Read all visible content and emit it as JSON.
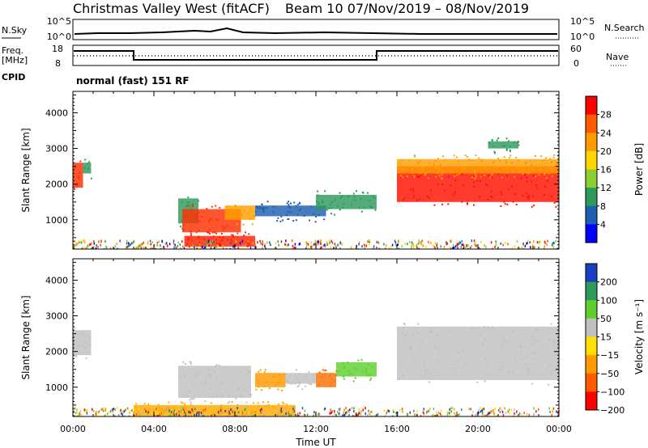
{
  "header": {
    "title": "Christmas Valley West (fitACF)",
    "subtitle": "Beam 10  07/Nov/2019 – 08/Nov/2019"
  },
  "panels": {
    "noise": {
      "left_label": "N.Sky",
      "right_label": "N.Search",
      "left_ticks": [
        "10^5",
        "10^0"
      ],
      "right_ticks": [
        "10^5",
        "10^0"
      ]
    },
    "freq": {
      "left_label_1": "Freq.",
      "left_label_2": "[MHz]",
      "right_label": "Nave",
      "left_ticks": [
        "18",
        "8"
      ],
      "right_ticks": [
        "60",
        "0"
      ]
    },
    "cpid": {
      "label": "CPID",
      "text": "normal (fast) 151 RF"
    }
  },
  "chart_data": [
    {
      "type": "heatmap",
      "name_printed": "",
      "ylabel": "Slant Range [km]",
      "xlabel": "",
      "x_ticks": [
        "00:00",
        "04:00",
        "08:00",
        "12:00",
        "16:00",
        "20:00",
        "00:00"
      ],
      "y_ticks": [
        1000,
        2000,
        3000,
        4000
      ],
      "ylim": [
        180,
        4600
      ],
      "xlim_hours": [
        0,
        24
      ],
      "colorbar": {
        "label": "Power [dB]",
        "ticks": [
          "28",
          "24",
          "20",
          "16",
          "12",
          "8",
          "4"
        ],
        "colors": [
          "#ff0000",
          "#ff5a00",
          "#ff9a00",
          "#ffd700",
          "#8ccf30",
          "#2e9a5a",
          "#1e5fb0",
          "#0000ff"
        ]
      },
      "regions": [
        {
          "t0": 0.0,
          "t1": 0.5,
          "r0": 1900,
          "r1": 2600,
          "color": "#ff3000"
        },
        {
          "t0": 0.5,
          "t1": 0.9,
          "r0": 2300,
          "r1": 2600,
          "color": "#2e9a5a"
        },
        {
          "t0": 5.2,
          "t1": 6.2,
          "r0": 900,
          "r1": 1600,
          "color": "#2e9a5a"
        },
        {
          "t0": 5.4,
          "t1": 8.3,
          "r0": 650,
          "r1": 1300,
          "color": "#ff3000"
        },
        {
          "t0": 5.5,
          "t1": 9.0,
          "r0": 250,
          "r1": 550,
          "color": "#ff2000"
        },
        {
          "t0": 7.5,
          "t1": 9.0,
          "r0": 1000,
          "r1": 1400,
          "color": "#ffa000"
        },
        {
          "t0": 9.0,
          "t1": 12.5,
          "r0": 1100,
          "r1": 1400,
          "color": "#1e5fb0"
        },
        {
          "t0": 12.0,
          "t1": 15.0,
          "r0": 1300,
          "r1": 1700,
          "color": "#2e9a5a"
        },
        {
          "t0": 16.0,
          "t1": 24.0,
          "r0": 1500,
          "r1": 2500,
          "color": "#ff1000"
        },
        {
          "t0": 16.0,
          "t1": 24.0,
          "r0": 2300,
          "r1": 2700,
          "color": "#ffa000"
        },
        {
          "t0": 20.5,
          "t1": 22.0,
          "r0": 3000,
          "r1": 3200,
          "color": "#2e9a5a"
        }
      ]
    },
    {
      "type": "heatmap",
      "name_printed": "",
      "ylabel": "Slant Range [km]",
      "xlabel": "Time UT",
      "x_ticks": [
        "00:00",
        "04:00",
        "08:00",
        "12:00",
        "16:00",
        "20:00",
        "00:00"
      ],
      "y_ticks": [
        1000,
        2000,
        3000,
        4000
      ],
      "ylim": [
        180,
        4600
      ],
      "xlim_hours": [
        0,
        24
      ],
      "colorbar": {
        "label": "Velocity [m s⁻¹]",
        "ticks": [
          "200",
          "100",
          "50",
          "15",
          "−15",
          "−50",
          "−100",
          "−200"
        ],
        "colors": [
          "#1a3fc0",
          "#2e9a5a",
          "#5fcf30",
          "#c0c0c0",
          "#ffe000",
          "#ff9a00",
          "#ff5a00",
          "#ff0000"
        ]
      },
      "regions": [
        {
          "t0": 0.0,
          "t1": 0.9,
          "r0": 1900,
          "r1": 2600,
          "color": "#c0c0c0"
        },
        {
          "t0": 5.2,
          "t1": 8.8,
          "r0": 700,
          "r1": 1600,
          "color": "#c0c0c0"
        },
        {
          "t0": 9.0,
          "t1": 10.5,
          "r0": 1000,
          "r1": 1400,
          "color": "#ff9a00"
        },
        {
          "t0": 10.5,
          "t1": 12.0,
          "r0": 1100,
          "r1": 1400,
          "color": "#c0c0c0"
        },
        {
          "t0": 12.0,
          "t1": 13.0,
          "r0": 1000,
          "r1": 1400,
          "color": "#ff7000"
        },
        {
          "t0": 13.0,
          "t1": 15.0,
          "r0": 1300,
          "r1": 1700,
          "color": "#5fcf30"
        },
        {
          "t0": 3.0,
          "t1": 11.0,
          "r0": 200,
          "r1": 500,
          "color": "#ffaa00"
        },
        {
          "t0": 16.0,
          "t1": 24.0,
          "r0": 1200,
          "r1": 2700,
          "color": "#c0c0c0"
        }
      ]
    }
  ],
  "colors": {
    "axis": "#000000",
    "background": "#ffffff"
  }
}
